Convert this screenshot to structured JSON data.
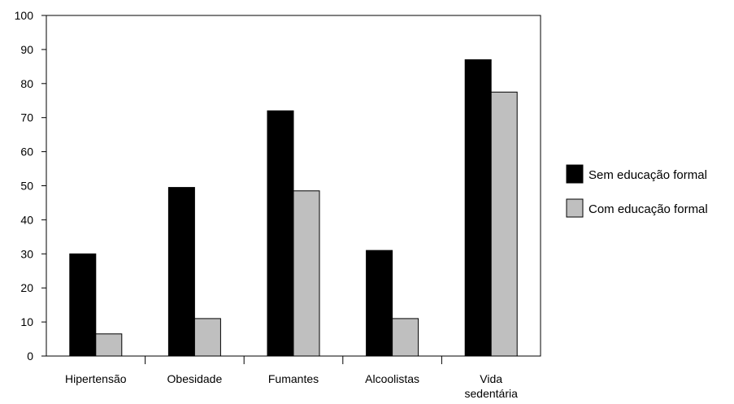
{
  "chart_data": {
    "type": "bar",
    "title": "",
    "xlabel": "",
    "ylabel": "",
    "ylim": [
      0,
      100
    ],
    "yticks": [
      0,
      10,
      20,
      30,
      40,
      50,
      60,
      70,
      80,
      90,
      100
    ],
    "categories": [
      [
        "Hipertensão"
      ],
      [
        "Obesidade"
      ],
      [
        "Fumantes"
      ],
      [
        "Alcoolistas"
      ],
      [
        "Vida",
        "sedentária"
      ]
    ],
    "series": [
      {
        "name": "Sem educação formal",
        "color": "#000000",
        "values": [
          30,
          49.5,
          72,
          31,
          87
        ]
      },
      {
        "name": "Com educação formal",
        "color": "#bfbfbf",
        "values": [
          6.5,
          11,
          48.5,
          11,
          77.5
        ]
      }
    ],
    "grid": false,
    "legend_position": "right"
  }
}
